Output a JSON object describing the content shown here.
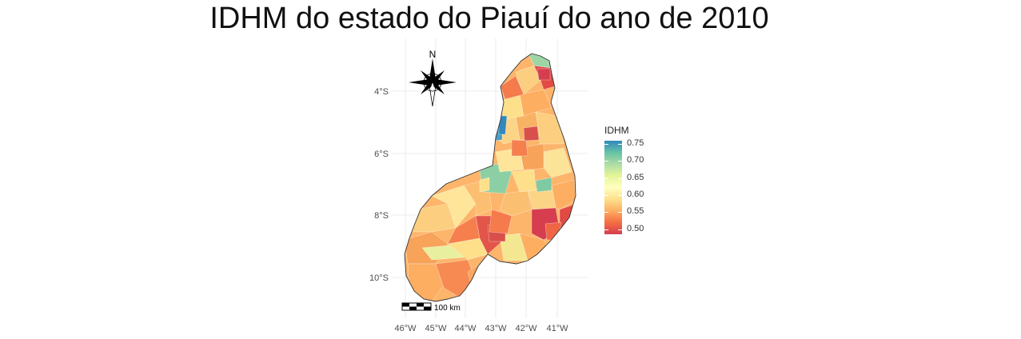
{
  "title": "IDHM do estado do Piauí do ano de 2010",
  "north_label": "N",
  "scale_label": "100 km",
  "axes": {
    "y_ticks": [
      "4°S",
      "6°S",
      "8°S",
      "10°S"
    ],
    "x_ticks": [
      "46°W",
      "45°W",
      "44°W",
      "43°W",
      "42°W",
      "41°W"
    ]
  },
  "legend": {
    "title": "IDHM",
    "labels": [
      "0.75",
      "0.70",
      "0.65",
      "0.60",
      "0.55",
      "0.50"
    ]
  },
  "colors": {
    "high": "#3288bd",
    "mid": "#ffffbf",
    "low": "#d53e4f"
  }
}
